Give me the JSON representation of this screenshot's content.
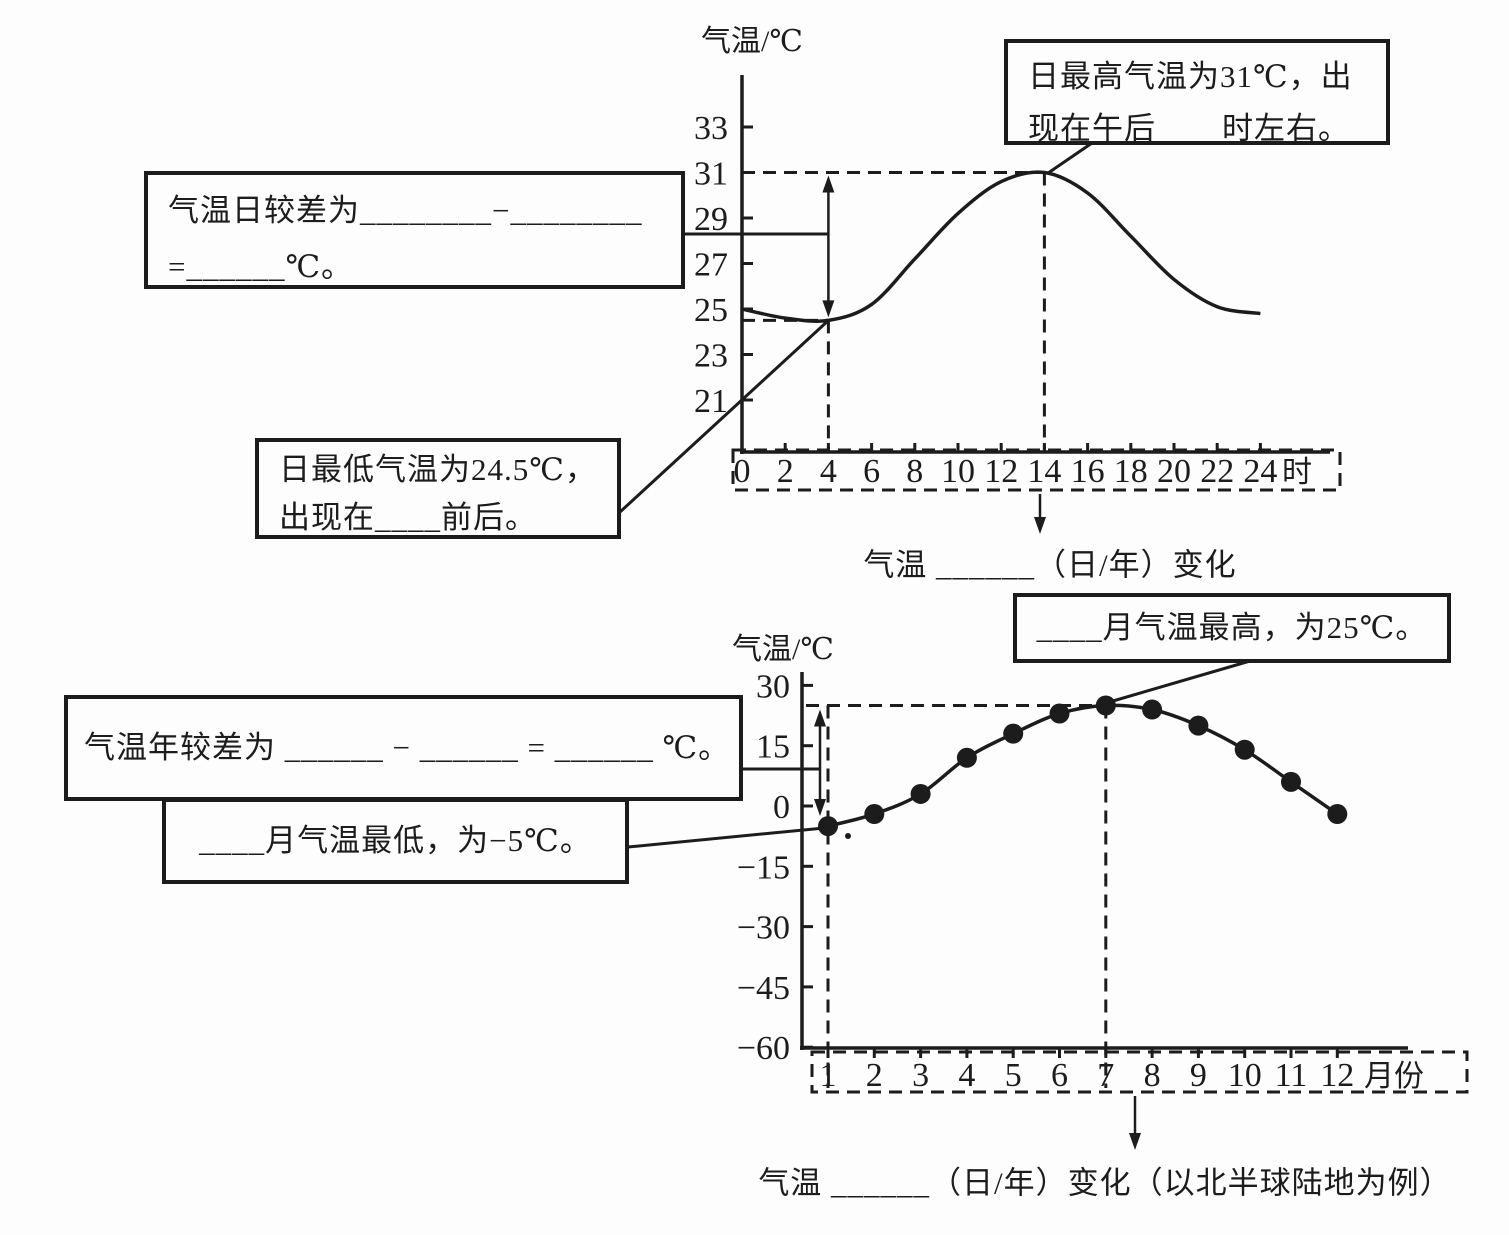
{
  "ink": "#1c1c1c",
  "background": "#fdfdfd",
  "chart_data": [
    {
      "id": "daily-temperature-curve",
      "type": "line",
      "ylabel": "气温/℃",
      "x_unit": "时",
      "x": [
        0,
        2,
        4,
        6,
        8,
        10,
        12,
        14,
        16,
        18,
        20,
        22,
        24
      ],
      "y": [
        25.0,
        24.6,
        24.5,
        25.2,
        27.2,
        29.2,
        30.6,
        31.0,
        30.1,
        28.2,
        26.3,
        25.1,
        24.8
      ],
      "y_ticks": [
        33,
        31,
        29,
        27,
        25,
        23,
        21
      ],
      "ylim": [
        20,
        34
      ],
      "grid": false,
      "max_point": {
        "x": 14,
        "y": 31
      },
      "min_point": {
        "x": 4,
        "y": 24.5
      }
    },
    {
      "id": "annual-temperature-curve",
      "type": "line",
      "ylabel": "气温/℃",
      "x_unit": "月份",
      "x": [
        1,
        2,
        3,
        4,
        5,
        6,
        7,
        8,
        9,
        10,
        11,
        12
      ],
      "y": [
        -5,
        -2,
        3,
        12,
        18,
        23,
        25,
        24,
        20,
        14,
        6,
        -2
      ],
      "y_ticks": [
        30,
        15,
        0,
        -15,
        -30,
        -45,
        -60
      ],
      "ylim": [
        -62,
        32
      ],
      "grid": false,
      "max_point": {
        "x": 7,
        "y": 25
      },
      "min_point": {
        "x": 1,
        "y": -5
      }
    }
  ],
  "annotations": {
    "daily_max": {
      "lines": [
        "日最高气温为31℃，出",
        "现在午后____时左右。"
      ]
    },
    "daily_range": {
      "lines": [
        "气温日较差为________−________",
        "=______℃。"
      ]
    },
    "daily_min": {
      "lines": [
        "日最低气温为24.5℃，",
        "出现在____前后。"
      ]
    },
    "annual_range": {
      "lines": [
        "气温年较差为 ______ − ______ = ______ ℃。"
      ]
    },
    "annual_min": {
      "lines": [
        "____月气温最低，为−5℃。"
      ]
    },
    "annual_max": {
      "lines": [
        "____月气温最高，为25℃。"
      ]
    }
  },
  "captions": {
    "daily": "气温 ______（日/年）变化",
    "annual": "气温 ______（日/年）变化（以北半球陆地为例）"
  }
}
